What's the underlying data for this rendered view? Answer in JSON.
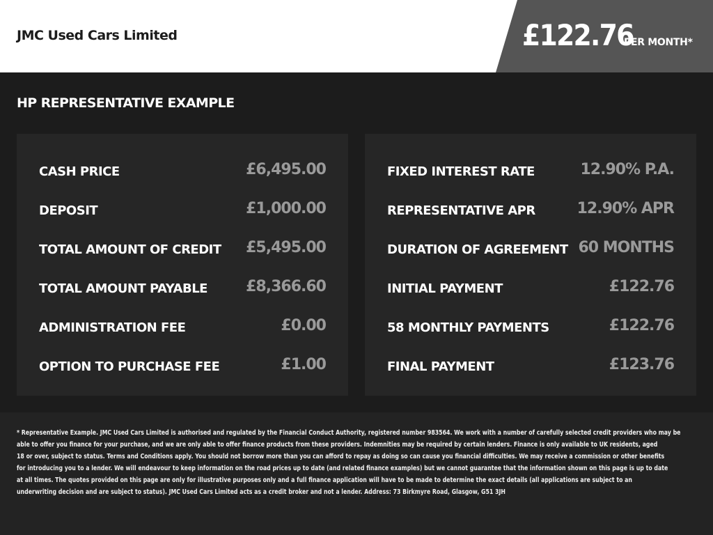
{
  "header": {
    "dealer": "JMC Used Cars Limited",
    "price": "£122.76",
    "per_month": "PER MONTH*"
  },
  "heading": "HP REPRESENTATIVE EXAMPLE",
  "left": [
    {
      "label": "CASH PRICE",
      "value": "£6,495.00"
    },
    {
      "label": "DEPOSIT",
      "value": "£1,000.00"
    },
    {
      "label": "TOTAL AMOUNT OF CREDIT",
      "value": "£5,495.00"
    },
    {
      "label": "TOTAL AMOUNT PAYABLE",
      "value": "£8,366.60"
    },
    {
      "label": "ADMINISTRATION FEE",
      "value": "£0.00"
    },
    {
      "label": "OPTION TO PURCHASE FEE",
      "value": "£1.00"
    }
  ],
  "right": [
    {
      "label": "FIXED INTEREST RATE",
      "value": "12.90% P.A."
    },
    {
      "label": "REPRESENTATIVE APR",
      "value": "12.90% APR"
    },
    {
      "label": "DURATION OF AGREEMENT",
      "value": "60 MONTHS"
    },
    {
      "label": "INITIAL PAYMENT",
      "value": "£122.76"
    },
    {
      "label": "58 MONTHLY PAYMENTS",
      "value": "£122.76"
    },
    {
      "label": "FINAL PAYMENT",
      "value": "£123.76"
    }
  ],
  "footer": [
    "* Representative Example. JMC Used Cars Limited is authorised and regulated by the Financial Conduct Authority, registered number 983564. We work with a number of carefully selected credit providers who may be",
    "able to offer you finance for your purchase, and we are only able to offer finance products from these providers. Indemnities may be required by certain lenders. Finance is only available to UK residents, aged",
    "18 or over, subject to status. Terms and Conditions apply. You should not borrow more than you can afford to repay as doing so can cause you financial difficulties. We may receive a commission or other benefits",
    "for introducing you to a lender. We will endeavour to keep information on the road prices up to date (and related finance examples) but we cannot guarantee that the information shown on this page is up to date",
    "at all times. The quotes provided on this page are only for illustrative purposes only and a full finance application will have to be made to determine the exact details (all applications are subject to an",
    "underwriting decision and are subject to status). JMC Used Cars Limited acts as a credit broker and not a lender. Address: 73 Birkmyre Road, Glasgow, G51 3JH"
  ]
}
